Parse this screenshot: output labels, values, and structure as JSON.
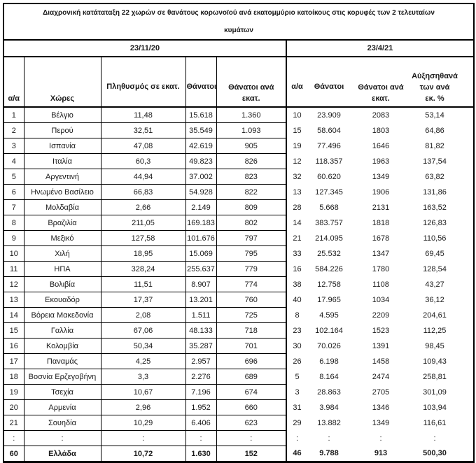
{
  "title": "Διαχρονική κατάταταξη 22 χωρών σε θανάτους  κορωνοϊού ανά εκατομμύριο κατοίκους στις κορυφές των 2 τελευταίων\nκυμάτων",
  "sections": {
    "left": {
      "date": "23/11/20"
    },
    "right": {
      "date": "23/4/21"
    }
  },
  "columns": {
    "left": [
      "α/α",
      "Χώρες",
      "Πληθυσμός σε εκατ.",
      "Θάνατοι",
      "Θάνατοι ανά\nεκατ."
    ],
    "right": [
      "α/α",
      "Θάνατοι",
      "Θάνατοι ανά\nεκατ.",
      "Αύξησηθανά\nτων ανά\nεκ. %"
    ]
  },
  "body": {
    "rows": [
      [
        "1",
        "Βέλγιο",
        "11,48",
        "15.618",
        "1.360",
        "10",
        "23.909",
        "2083",
        "53,14"
      ],
      [
        "2",
        "Περού",
        "32,51",
        "35.549",
        "1.093",
        "15",
        "58.604",
        "1803",
        "64,86"
      ],
      [
        "3",
        "Ισπανία",
        "47,08",
        "42.619",
        "905",
        "19",
        "77.496",
        "1646",
        "81,82"
      ],
      [
        "4",
        "Ιταλία",
        "60,3",
        "49.823",
        "826",
        "12",
        "118.357",
        "1963",
        "137,54"
      ],
      [
        "5",
        "Αργεντινή",
        "44,94",
        "37.002",
        "823",
        "32",
        "60.620",
        "1349",
        "63,82"
      ],
      [
        "6",
        "Ηνωμένο Βασίλειο",
        "66,83",
        "54.928",
        "822",
        "13",
        "127.345",
        "1906",
        "131,86"
      ],
      [
        "7",
        "Μολδαβία",
        "2,66",
        "2.149",
        "809",
        "28",
        "5.668",
        "2131",
        "163,52"
      ],
      [
        "8",
        "Βραζιλία",
        "211,05",
        "169.183",
        "802",
        "14",
        "383.757",
        "1818",
        "126,83"
      ],
      [
        "9",
        "Μεξικό",
        "127,58",
        "101.676",
        "797",
        "21",
        "214.095",
        "1678",
        "110,56"
      ],
      [
        "10",
        "Χιλή",
        "18,95",
        "15.069",
        "795",
        "33",
        "25.532",
        "1347",
        "69,45"
      ],
      [
        "11",
        "ΗΠΑ",
        "328,24",
        "255.637",
        "779",
        "16",
        "584.226",
        "1780",
        "128,54"
      ],
      [
        "12",
        "Βολιβία",
        "11,51",
        "8.907",
        "774",
        "38",
        "12.758",
        "1108",
        "43,27"
      ],
      [
        "13",
        "Εκουαδόρ",
        "17,37",
        "13.201",
        "760",
        "40",
        "17.965",
        "1034",
        "36,12"
      ],
      [
        "14",
        "Βόρεια Μακεδονία",
        "2,08",
        "1.511",
        "725",
        "8",
        "4.595",
        "2209",
        "204,61"
      ],
      [
        "15",
        "Γαλλία",
        "67,06",
        "48.133",
        "718",
        "23",
        "102.164",
        "1523",
        "112,25"
      ],
      [
        "16",
        "Κολομβία",
        "50,34",
        "35.287",
        "701",
        "30",
        "70.026",
        "1391",
        "98,45"
      ],
      [
        "17",
        "Παναμάς",
        "4,25",
        "2.957",
        "696",
        "26",
        "6.198",
        "1458",
        "109,43"
      ],
      [
        "18",
        "Βοσνία Ερζεγοβήνη",
        "3,3",
        "2.276",
        "689",
        "5",
        "8.164",
        "2474",
        "258,81"
      ],
      [
        "19",
        "Τσεχία",
        "10,67",
        "7.196",
        "674",
        "3",
        "28.863",
        "2705",
        "301,09"
      ],
      [
        "20",
        "Αρμενία",
        "2,96",
        "1.952",
        "660",
        "31",
        "3.984",
        "1346",
        "103,94"
      ],
      [
        "21",
        "Σουηδία",
        "10,29",
        "6.406",
        "623",
        "29",
        "13.882",
        "1349",
        "116,61"
      ]
    ],
    "ellipsis_row": [
      ":",
      ":",
      ":",
      ":",
      ":",
      ":",
      ":",
      ":",
      ":"
    ],
    "total_row": [
      "60",
      "Ελλάδα",
      "10,72",
      "1.630",
      "152",
      "46",
      "9.788",
      "913",
      "500,30"
    ]
  },
  "colors": {
    "text": "#1a1a1a",
    "border": "#000000",
    "background": "#ffffff"
  }
}
